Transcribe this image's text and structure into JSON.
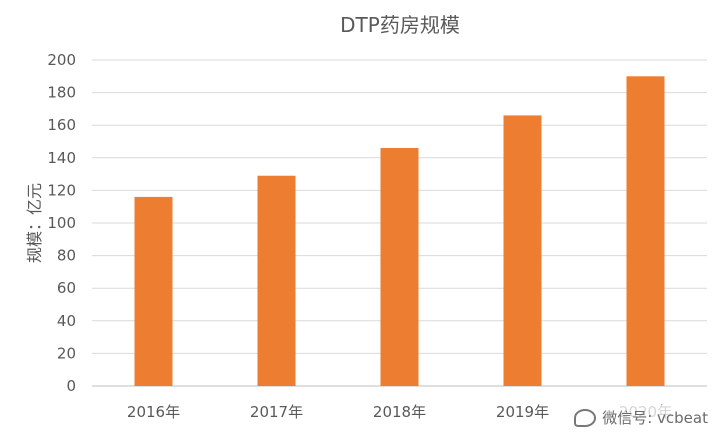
{
  "chart_data": {
    "type": "bar",
    "title": "DTP药房规模",
    "xlabel": "",
    "ylabel": "规模：亿元",
    "categories": [
      "2016年",
      "2017年",
      "2018年",
      "2019年",
      "2020年"
    ],
    "values": [
      116,
      129,
      146,
      166,
      190
    ],
    "ylim": [
      0,
      200
    ],
    "yticks": [
      0,
      20,
      40,
      60,
      80,
      100,
      120,
      140,
      160,
      180,
      200
    ],
    "grid": true,
    "legend": "none",
    "bar_color": "#ed7d31"
  },
  "watermark": {
    "text": "微信号: vcbeat"
  }
}
